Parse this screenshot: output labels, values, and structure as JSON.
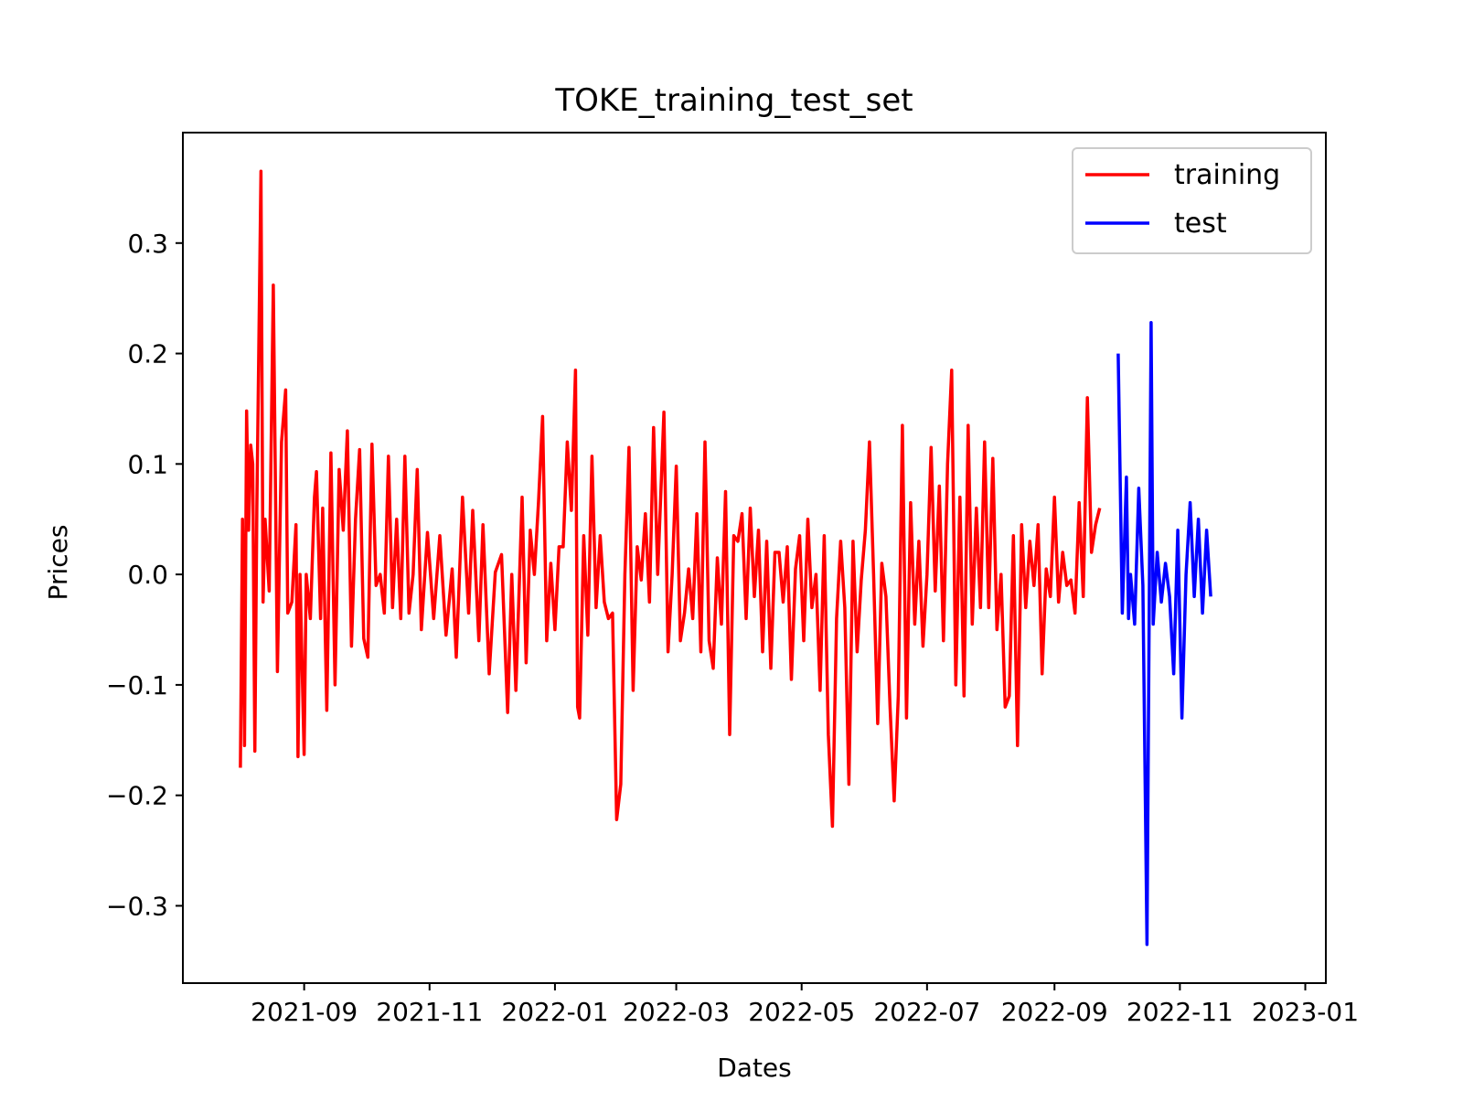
{
  "chart_data": {
    "type": "line",
    "title": "TOKE_training_test_set",
    "xlabel": "Dates",
    "ylabel": "Prices",
    "xlim": [
      "2021-07-04",
      "2023-01-11"
    ],
    "ylim": [
      -0.37,
      0.4
    ],
    "x_ticks": [
      "2021-09-01",
      "2021-11-01",
      "2022-01-01",
      "2022-03-01",
      "2022-05-01",
      "2022-07-01",
      "2022-09-01",
      "2022-11-01",
      "2023-01-01"
    ],
    "x_tick_labels": [
      "2021-09",
      "2021-11",
      "2022-01",
      "2022-03",
      "2022-05",
      "2022-07",
      "2022-09",
      "2022-11",
      "2023-01"
    ],
    "y_ticks": [
      -0.3,
      -0.2,
      -0.1,
      0.0,
      0.1,
      0.2,
      0.3
    ],
    "y_tick_labels": [
      "−0.3",
      "−0.2",
      "−0.1",
      "0.0",
      "0.1",
      "0.2",
      "0.3"
    ],
    "grid": false,
    "legend": {
      "position": "top-right",
      "entries": [
        "training",
        "test"
      ]
    },
    "series": [
      {
        "name": "training",
        "color": "#ff0000",
        "points": [
          [
            "2021-08-01",
            -0.175
          ],
          [
            "2021-08-02",
            0.05
          ],
          [
            "2021-08-03",
            -0.155
          ],
          [
            "2021-08-04",
            0.148
          ],
          [
            "2021-08-05",
            0.04
          ],
          [
            "2021-08-06",
            0.117
          ],
          [
            "2021-08-07",
            0.1
          ],
          [
            "2021-08-08",
            -0.16
          ],
          [
            "2021-08-09",
            0.06
          ],
          [
            "2021-08-11",
            0.365
          ],
          [
            "2021-08-12",
            -0.025
          ],
          [
            "2021-08-13",
            0.05
          ],
          [
            "2021-08-15",
            -0.015
          ],
          [
            "2021-08-17",
            0.262
          ],
          [
            "2021-08-19",
            -0.088
          ],
          [
            "2021-08-20",
            0.02
          ],
          [
            "2021-08-21",
            0.12
          ],
          [
            "2021-08-23",
            0.167
          ],
          [
            "2021-08-24",
            -0.035
          ],
          [
            "2021-08-26",
            -0.025
          ],
          [
            "2021-08-28",
            0.045
          ],
          [
            "2021-08-29",
            -0.165
          ],
          [
            "2021-08-30",
            0.0
          ],
          [
            "2021-09-01",
            -0.163
          ],
          [
            "2021-09-02",
            0.0
          ],
          [
            "2021-09-04",
            -0.04
          ],
          [
            "2021-09-06",
            0.07
          ],
          [
            "2021-09-07",
            0.093
          ],
          [
            "2021-09-09",
            -0.04
          ],
          [
            "2021-09-10",
            0.06
          ],
          [
            "2021-09-12",
            -0.123
          ],
          [
            "2021-09-14",
            0.11
          ],
          [
            "2021-09-16",
            -0.1
          ],
          [
            "2021-09-18",
            0.095
          ],
          [
            "2021-09-20",
            0.04
          ],
          [
            "2021-09-22",
            0.13
          ],
          [
            "2021-09-24",
            -0.065
          ],
          [
            "2021-09-26",
            0.05
          ],
          [
            "2021-09-28",
            0.113
          ],
          [
            "2021-09-30",
            -0.058
          ],
          [
            "2021-10-02",
            -0.075
          ],
          [
            "2021-10-04",
            0.118
          ],
          [
            "2021-10-06",
            -0.01
          ],
          [
            "2021-10-08",
            0.0
          ],
          [
            "2021-10-10",
            -0.035
          ],
          [
            "2021-10-12",
            0.107
          ],
          [
            "2021-10-14",
            -0.03
          ],
          [
            "2021-10-16",
            0.05
          ],
          [
            "2021-10-18",
            -0.04
          ],
          [
            "2021-10-20",
            0.107
          ],
          [
            "2021-10-22",
            -0.035
          ],
          [
            "2021-10-24",
            0.0
          ],
          [
            "2021-10-26",
            0.095
          ],
          [
            "2021-10-28",
            -0.05
          ],
          [
            "2021-10-31",
            0.038
          ],
          [
            "2021-11-03",
            -0.04
          ],
          [
            "2021-11-06",
            0.035
          ],
          [
            "2021-11-09",
            -0.055
          ],
          [
            "2021-11-12",
            0.005
          ],
          [
            "2021-11-14",
            -0.075
          ],
          [
            "2021-11-17",
            0.07
          ],
          [
            "2021-11-20",
            -0.035
          ],
          [
            "2021-11-22",
            0.058
          ],
          [
            "2021-11-25",
            -0.06
          ],
          [
            "2021-11-27",
            0.045
          ],
          [
            "2021-11-30",
            -0.09
          ],
          [
            "2021-12-03",
            0.002
          ],
          [
            "2021-12-06",
            0.018
          ],
          [
            "2021-12-09",
            -0.125
          ],
          [
            "2021-12-11",
            0.0
          ],
          [
            "2021-12-13",
            -0.105
          ],
          [
            "2021-12-16",
            0.07
          ],
          [
            "2021-12-18",
            -0.08
          ],
          [
            "2021-12-20",
            0.04
          ],
          [
            "2021-12-22",
            0.0
          ],
          [
            "2021-12-24",
            0.065
          ],
          [
            "2021-12-26",
            0.143
          ],
          [
            "2021-12-28",
            -0.06
          ],
          [
            "2021-12-30",
            0.01
          ],
          [
            "2022-01-01",
            -0.05
          ],
          [
            "2022-01-03",
            0.025
          ],
          [
            "2022-01-05",
            0.025
          ],
          [
            "2022-01-07",
            0.12
          ],
          [
            "2022-01-09",
            0.058
          ],
          [
            "2022-01-11",
            0.185
          ],
          [
            "2022-01-12",
            -0.12
          ],
          [
            "2022-01-13",
            -0.13
          ],
          [
            "2022-01-15",
            0.035
          ],
          [
            "2022-01-17",
            -0.055
          ],
          [
            "2022-01-19",
            0.107
          ],
          [
            "2022-01-21",
            -0.03
          ],
          [
            "2022-01-23",
            0.035
          ],
          [
            "2022-01-25",
            -0.025
          ],
          [
            "2022-01-27",
            -0.04
          ],
          [
            "2022-01-29",
            -0.035
          ],
          [
            "2022-01-31",
            -0.222
          ],
          [
            "2022-02-02",
            -0.19
          ],
          [
            "2022-02-04",
            0.0
          ],
          [
            "2022-02-06",
            0.115
          ],
          [
            "2022-02-08",
            -0.105
          ],
          [
            "2022-02-10",
            0.025
          ],
          [
            "2022-02-12",
            -0.005
          ],
          [
            "2022-02-14",
            0.055
          ],
          [
            "2022-02-16",
            -0.025
          ],
          [
            "2022-02-18",
            0.133
          ],
          [
            "2022-02-20",
            0.0
          ],
          [
            "2022-02-23",
            0.147
          ],
          [
            "2022-02-25",
            -0.07
          ],
          [
            "2022-02-27",
            0.0
          ],
          [
            "2022-03-01",
            0.098
          ],
          [
            "2022-03-03",
            -0.06
          ],
          [
            "2022-03-05",
            -0.035
          ],
          [
            "2022-03-07",
            0.005
          ],
          [
            "2022-03-09",
            -0.04
          ],
          [
            "2022-03-11",
            0.055
          ],
          [
            "2022-03-13",
            -0.07
          ],
          [
            "2022-03-15",
            0.12
          ],
          [
            "2022-03-17",
            -0.06
          ],
          [
            "2022-03-19",
            -0.085
          ],
          [
            "2022-03-21",
            0.015
          ],
          [
            "2022-03-23",
            -0.045
          ],
          [
            "2022-03-25",
            0.075
          ],
          [
            "2022-03-27",
            -0.145
          ],
          [
            "2022-03-29",
            0.035
          ],
          [
            "2022-03-31",
            0.03
          ],
          [
            "2022-04-02",
            0.055
          ],
          [
            "2022-04-04",
            -0.04
          ],
          [
            "2022-04-06",
            0.06
          ],
          [
            "2022-04-08",
            -0.02
          ],
          [
            "2022-04-10",
            0.04
          ],
          [
            "2022-04-12",
            -0.07
          ],
          [
            "2022-04-14",
            0.03
          ],
          [
            "2022-04-16",
            -0.085
          ],
          [
            "2022-04-18",
            0.02
          ],
          [
            "2022-04-20",
            0.02
          ],
          [
            "2022-04-22",
            -0.025
          ],
          [
            "2022-04-24",
            0.025
          ],
          [
            "2022-04-26",
            -0.095
          ],
          [
            "2022-04-28",
            0.005
          ],
          [
            "2022-04-30",
            0.035
          ],
          [
            "2022-05-02",
            -0.06
          ],
          [
            "2022-05-04",
            0.05
          ],
          [
            "2022-05-06",
            -0.03
          ],
          [
            "2022-05-08",
            0.0
          ],
          [
            "2022-05-10",
            -0.105
          ],
          [
            "2022-05-12",
            0.035
          ],
          [
            "2022-05-14",
            -0.145
          ],
          [
            "2022-05-16",
            -0.228
          ],
          [
            "2022-05-18",
            -0.04
          ],
          [
            "2022-05-20",
            0.03
          ],
          [
            "2022-05-22",
            -0.03
          ],
          [
            "2022-05-24",
            -0.19
          ],
          [
            "2022-05-26",
            0.03
          ],
          [
            "2022-05-28",
            -0.07
          ],
          [
            "2022-05-30",
            -0.005
          ],
          [
            "2022-06-01",
            0.04
          ],
          [
            "2022-06-03",
            0.12
          ],
          [
            "2022-06-05",
            0.0
          ],
          [
            "2022-06-07",
            -0.135
          ],
          [
            "2022-06-09",
            0.01
          ],
          [
            "2022-06-11",
            -0.02
          ],
          [
            "2022-06-13",
            -0.12
          ],
          [
            "2022-06-15",
            -0.205
          ],
          [
            "2022-06-17",
            -0.11
          ],
          [
            "2022-06-19",
            0.135
          ],
          [
            "2022-06-21",
            -0.13
          ],
          [
            "2022-06-23",
            0.065
          ],
          [
            "2022-06-25",
            -0.045
          ],
          [
            "2022-06-27",
            0.03
          ],
          [
            "2022-06-29",
            -0.065
          ],
          [
            "2022-07-01",
            0.0
          ],
          [
            "2022-07-03",
            0.115
          ],
          [
            "2022-07-05",
            -0.015
          ],
          [
            "2022-07-07",
            0.08
          ],
          [
            "2022-07-09",
            -0.06
          ],
          [
            "2022-07-11",
            0.1
          ],
          [
            "2022-07-13",
            0.185
          ],
          [
            "2022-07-15",
            -0.1
          ],
          [
            "2022-07-17",
            0.07
          ],
          [
            "2022-07-19",
            -0.11
          ],
          [
            "2022-07-21",
            0.135
          ],
          [
            "2022-07-23",
            -0.045
          ],
          [
            "2022-07-25",
            0.06
          ],
          [
            "2022-07-27",
            -0.03
          ],
          [
            "2022-07-29",
            0.12
          ],
          [
            "2022-07-31",
            -0.03
          ],
          [
            "2022-08-02",
            0.105
          ],
          [
            "2022-08-04",
            -0.05
          ],
          [
            "2022-08-06",
            0.0
          ],
          [
            "2022-08-08",
            -0.12
          ],
          [
            "2022-08-10",
            -0.11
          ],
          [
            "2022-08-12",
            0.035
          ],
          [
            "2022-08-14",
            -0.155
          ],
          [
            "2022-08-16",
            0.045
          ],
          [
            "2022-08-18",
            -0.03
          ],
          [
            "2022-08-20",
            0.03
          ],
          [
            "2022-08-22",
            -0.01
          ],
          [
            "2022-08-24",
            0.045
          ],
          [
            "2022-08-26",
            -0.09
          ],
          [
            "2022-08-28",
            0.005
          ],
          [
            "2022-08-30",
            -0.02
          ],
          [
            "2022-09-01",
            0.07
          ],
          [
            "2022-09-03",
            -0.025
          ],
          [
            "2022-09-05",
            0.02
          ],
          [
            "2022-09-07",
            -0.01
          ],
          [
            "2022-09-09",
            -0.005
          ],
          [
            "2022-09-11",
            -0.035
          ],
          [
            "2022-09-13",
            0.065
          ],
          [
            "2022-09-15",
            -0.02
          ],
          [
            "2022-09-17",
            0.16
          ],
          [
            "2022-09-19",
            0.02
          ],
          [
            "2022-09-21",
            0.045
          ],
          [
            "2022-09-23",
            0.06
          ]
        ]
      },
      {
        "name": "test",
        "color": "#0000ff",
        "points": [
          [
            "2022-10-02",
            0.2
          ],
          [
            "2022-10-04",
            -0.035
          ],
          [
            "2022-10-06",
            0.088
          ],
          [
            "2022-10-07",
            -0.04
          ],
          [
            "2022-10-08",
            0.0
          ],
          [
            "2022-10-10",
            -0.045
          ],
          [
            "2022-10-12",
            0.078
          ],
          [
            "2022-10-14",
            -0.01
          ],
          [
            "2022-10-16",
            -0.335
          ],
          [
            "2022-10-18",
            0.228
          ],
          [
            "2022-10-19",
            -0.045
          ],
          [
            "2022-10-21",
            0.02
          ],
          [
            "2022-10-23",
            -0.025
          ],
          [
            "2022-10-25",
            0.01
          ],
          [
            "2022-10-27",
            -0.02
          ],
          [
            "2022-10-29",
            -0.09
          ],
          [
            "2022-10-31",
            0.04
          ],
          [
            "2022-11-02",
            -0.13
          ],
          [
            "2022-11-04",
            0.0
          ],
          [
            "2022-11-06",
            0.065
          ],
          [
            "2022-11-08",
            -0.02
          ],
          [
            "2022-11-10",
            0.05
          ],
          [
            "2022-11-12",
            -0.035
          ],
          [
            "2022-11-14",
            0.04
          ],
          [
            "2022-11-16",
            -0.02
          ]
        ]
      }
    ]
  }
}
